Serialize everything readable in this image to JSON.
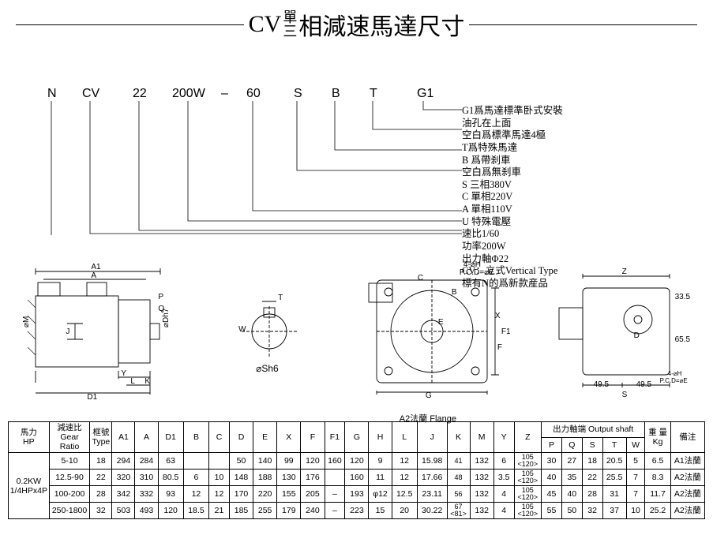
{
  "title": {
    "left": "CV",
    "stackTop": "單",
    "stackBottom": "三",
    "right": "相減速馬達尺寸"
  },
  "partLabels": {
    "N": "N",
    "CV": "CV",
    "22": "22",
    "200W": "200W",
    "dash": "–",
    "60": "60",
    "S": "S",
    "B": "B",
    "T": "T",
    "G1": "G1"
  },
  "legendLines": [
    "G1爲馬達標準卧式安裝",
    "油孔在上面",
    "空白爲標準馬達4極",
    "T爲特殊馬達",
    "B 爲帶刹車",
    "空白爲無刹車",
    "S 三相380V",
    "C 單相220V",
    "A 單相110V",
    "U 特殊電壓",
    "速比1/60",
    "功率200W",
    "出力軸Φ22",
    "CV：立式Vertical Type",
    "標有N的爲新款産品"
  ],
  "diaLabels": {
    "A1": "A1",
    "A": "A",
    "P": "P",
    "Q": "Q",
    "J": "J",
    "Dh7": "⌀Dh7",
    "Y": "Y",
    "L": "L",
    "K": "K",
    "D1": "D1",
    "M": "⌀M",
    "T": "T",
    "W": "W",
    "Sh6": "⌀Sh6",
    "C": "C",
    "B": "B",
    "X": "X",
    "F1": "F1",
    "E": "E",
    "G": "G",
    "H": "4-⌀H",
    "PCD": "P.C.D=⌀E",
    "Z": "Z",
    "F": "F",
    "D": "D",
    "S2": "49.5",
    "S3": "49.5",
    "R1": "33.5",
    "R2": "65.5",
    "Scap": "S",
    "caption": "A2法蘭 Flange"
  },
  "table": {
    "headers": {
      "hp": "馬力\nHP",
      "gear": "減速比\nGear\nRatio",
      "type": "框號\nType",
      "output": "出力軸端 Output shaft",
      "A1": "A1",
      "A": "A",
      "D1": "D1",
      "B": "B",
      "C": "C",
      "D": "D",
      "E": "E",
      "X": "X",
      "F": "F",
      "F1": "F1",
      "G": "G",
      "H": "H",
      "L": "L",
      "J": "J",
      "K": "K",
      "M": "M",
      "Y": "Y",
      "Z": "Z",
      "P": "P",
      "Q": "Q",
      "S": "S",
      "T": "T",
      "W": "W",
      "Kg": "Kg",
      "wt": "重 量",
      "remark": "備注"
    },
    "hp_val": "0.2KW\n1/4HPx4P",
    "rows": [
      {
        "gear": "5-10",
        "type": "18",
        "A1": "294",
        "A": "284",
        "D1": "63",
        "B": "",
        "C": "",
        "D": "50",
        "E": "140",
        "X": "99",
        "F": "120",
        "F1": "160",
        "G": "120",
        "H": "9",
        "L": "12",
        "J": "15.98",
        "K": "41",
        "M": "132",
        "Y": "6",
        "Z": "105\n<120>",
        "P": "30",
        "Q": "27",
        "S": "18",
        "T": "20.5",
        "W": "5",
        "Kg": "6.5",
        "remark": "A1法蘭"
      },
      {
        "gear": "12.5-90",
        "type": "22",
        "A1": "320",
        "A": "310",
        "D1": "80.5",
        "B": "6",
        "C": "10",
        "D": "148",
        "E": "188",
        "X": "130",
        "F": "176",
        "F1": "",
        "G": "160",
        "H": "11",
        "L": "12",
        "J": "17.66",
        "K": "48",
        "M": "132",
        "Y": "3.5",
        "Z": "105\n<120>",
        "P": "40",
        "Q": "35",
        "S": "22",
        "T": "25.5",
        "W": "7",
        "Kg": "8.3",
        "remark": "A2法蘭"
      },
      {
        "gear": "100-200",
        "type": "28",
        "A1": "342",
        "A": "332",
        "D1": "93",
        "B": "12",
        "C": "12",
        "D": "170",
        "E": "220",
        "X": "155",
        "F": "205",
        "F1": "–",
        "G": "193",
        "H": "φ12",
        "L": "12.5",
        "J": "23.11",
        "K": "56",
        "M": "132",
        "Y": "4",
        "Z": "105\n<120>",
        "P": "45",
        "Q": "40",
        "S": "28",
        "T": "31",
        "W": "7",
        "Kg": "11.7",
        "remark": "A2法蘭"
      },
      {
        "gear": "250-1800",
        "type": "32",
        "A1": "503",
        "A": "493",
        "D1": "120",
        "B": "18.5",
        "C": "21",
        "D": "185",
        "E": "255",
        "X": "179",
        "F": "240",
        "F1": "–",
        "G": "223",
        "H": "15",
        "L": "20",
        "J": "30.22",
        "K": "67\n<81>",
        "M": "132",
        "Y": "4",
        "Z": "105\n<120>",
        "P": "55",
        "Q": "50",
        "S": "32",
        "T": "37",
        "W": "10",
        "Kg": "25.2",
        "remark": "A2法蘭"
      }
    ]
  },
  "colors": {
    "bg": "#ffffff",
    "line": "#000000"
  }
}
